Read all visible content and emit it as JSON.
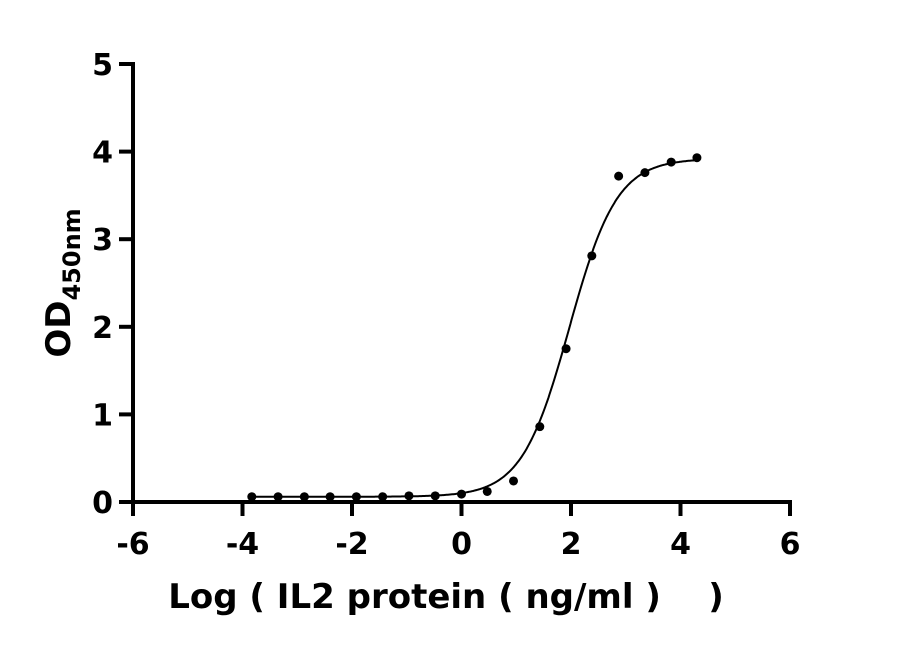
{
  "chart_data": {
    "type": "scatter",
    "title": "",
    "xlabel": "Log ( IL2 protein ( ng/ml )    )",
    "ylabel": "OD",
    "ylabel_subscript": "450nm",
    "xlim": [
      -6,
      6
    ],
    "ylim": [
      0,
      5
    ],
    "xticks": [
      -6,
      -4,
      -2,
      0,
      2,
      4,
      6
    ],
    "yticks": [
      0,
      1,
      2,
      3,
      4,
      5
    ],
    "grid": false,
    "fit_curve": "sigmoidal dose-response",
    "color": "#000000",
    "points": [
      {
        "x": -3.83,
        "y": 0.06
      },
      {
        "x": -3.35,
        "y": 0.06
      },
      {
        "x": -2.87,
        "y": 0.06
      },
      {
        "x": -2.4,
        "y": 0.06
      },
      {
        "x": -1.92,
        "y": 0.06
      },
      {
        "x": -1.44,
        "y": 0.06
      },
      {
        "x": -0.96,
        "y": 0.07
      },
      {
        "x": -0.48,
        "y": 0.07
      },
      {
        "x": 0.0,
        "y": 0.09
      },
      {
        "x": 0.47,
        "y": 0.12
      },
      {
        "x": 0.95,
        "y": 0.24
      },
      {
        "x": 1.43,
        "y": 0.86
      },
      {
        "x": 1.91,
        "y": 1.75
      },
      {
        "x": 2.38,
        "y": 2.81
      },
      {
        "x": 2.87,
        "y": 3.72
      },
      {
        "x": 3.35,
        "y": 3.76
      },
      {
        "x": 3.83,
        "y": 3.88
      },
      {
        "x": 4.3,
        "y": 3.93
      }
    ]
  }
}
